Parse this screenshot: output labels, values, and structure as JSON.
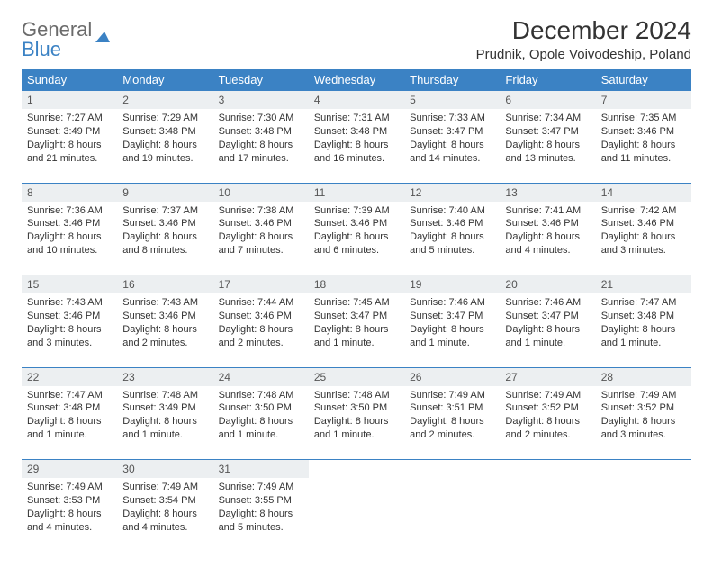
{
  "brand": {
    "part1": "General",
    "part2": "Blue"
  },
  "title": "December 2024",
  "subtitle": "Prudnik, Opole Voivodeship, Poland",
  "colors": {
    "header_bg": "#3b82c4",
    "header_text": "#ffffff",
    "daynum_bg": "#eceff1",
    "border": "#3b82c4",
    "text": "#333333",
    "logo_gray": "#6b6b6b",
    "logo_blue": "#3b82c4",
    "page_bg": "#ffffff"
  },
  "weekdays": [
    "Sunday",
    "Monday",
    "Tuesday",
    "Wednesday",
    "Thursday",
    "Friday",
    "Saturday"
  ],
  "weeks": [
    [
      {
        "n": "1",
        "sr": "7:27 AM",
        "ss": "3:49 PM",
        "dl": "8 hours and 21 minutes."
      },
      {
        "n": "2",
        "sr": "7:29 AM",
        "ss": "3:48 PM",
        "dl": "8 hours and 19 minutes."
      },
      {
        "n": "3",
        "sr": "7:30 AM",
        "ss": "3:48 PM",
        "dl": "8 hours and 17 minutes."
      },
      {
        "n": "4",
        "sr": "7:31 AM",
        "ss": "3:48 PM",
        "dl": "8 hours and 16 minutes."
      },
      {
        "n": "5",
        "sr": "7:33 AM",
        "ss": "3:47 PM",
        "dl": "8 hours and 14 minutes."
      },
      {
        "n": "6",
        "sr": "7:34 AM",
        "ss": "3:47 PM",
        "dl": "8 hours and 13 minutes."
      },
      {
        "n": "7",
        "sr": "7:35 AM",
        "ss": "3:46 PM",
        "dl": "8 hours and 11 minutes."
      }
    ],
    [
      {
        "n": "8",
        "sr": "7:36 AM",
        "ss": "3:46 PM",
        "dl": "8 hours and 10 minutes."
      },
      {
        "n": "9",
        "sr": "7:37 AM",
        "ss": "3:46 PM",
        "dl": "8 hours and 8 minutes."
      },
      {
        "n": "10",
        "sr": "7:38 AM",
        "ss": "3:46 PM",
        "dl": "8 hours and 7 minutes."
      },
      {
        "n": "11",
        "sr": "7:39 AM",
        "ss": "3:46 PM",
        "dl": "8 hours and 6 minutes."
      },
      {
        "n": "12",
        "sr": "7:40 AM",
        "ss": "3:46 PM",
        "dl": "8 hours and 5 minutes."
      },
      {
        "n": "13",
        "sr": "7:41 AM",
        "ss": "3:46 PM",
        "dl": "8 hours and 4 minutes."
      },
      {
        "n": "14",
        "sr": "7:42 AM",
        "ss": "3:46 PM",
        "dl": "8 hours and 3 minutes."
      }
    ],
    [
      {
        "n": "15",
        "sr": "7:43 AM",
        "ss": "3:46 PM",
        "dl": "8 hours and 3 minutes."
      },
      {
        "n": "16",
        "sr": "7:43 AM",
        "ss": "3:46 PM",
        "dl": "8 hours and 2 minutes."
      },
      {
        "n": "17",
        "sr": "7:44 AM",
        "ss": "3:46 PM",
        "dl": "8 hours and 2 minutes."
      },
      {
        "n": "18",
        "sr": "7:45 AM",
        "ss": "3:47 PM",
        "dl": "8 hours and 1 minute."
      },
      {
        "n": "19",
        "sr": "7:46 AM",
        "ss": "3:47 PM",
        "dl": "8 hours and 1 minute."
      },
      {
        "n": "20",
        "sr": "7:46 AM",
        "ss": "3:47 PM",
        "dl": "8 hours and 1 minute."
      },
      {
        "n": "21",
        "sr": "7:47 AM",
        "ss": "3:48 PM",
        "dl": "8 hours and 1 minute."
      }
    ],
    [
      {
        "n": "22",
        "sr": "7:47 AM",
        "ss": "3:48 PM",
        "dl": "8 hours and 1 minute."
      },
      {
        "n": "23",
        "sr": "7:48 AM",
        "ss": "3:49 PM",
        "dl": "8 hours and 1 minute."
      },
      {
        "n": "24",
        "sr": "7:48 AM",
        "ss": "3:50 PM",
        "dl": "8 hours and 1 minute."
      },
      {
        "n": "25",
        "sr": "7:48 AM",
        "ss": "3:50 PM",
        "dl": "8 hours and 1 minute."
      },
      {
        "n": "26",
        "sr": "7:49 AM",
        "ss": "3:51 PM",
        "dl": "8 hours and 2 minutes."
      },
      {
        "n": "27",
        "sr": "7:49 AM",
        "ss": "3:52 PM",
        "dl": "8 hours and 2 minutes."
      },
      {
        "n": "28",
        "sr": "7:49 AM",
        "ss": "3:52 PM",
        "dl": "8 hours and 3 minutes."
      }
    ],
    [
      {
        "n": "29",
        "sr": "7:49 AM",
        "ss": "3:53 PM",
        "dl": "8 hours and 4 minutes."
      },
      {
        "n": "30",
        "sr": "7:49 AM",
        "ss": "3:54 PM",
        "dl": "8 hours and 4 minutes."
      },
      {
        "n": "31",
        "sr": "7:49 AM",
        "ss": "3:55 PM",
        "dl": "8 hours and 5 minutes."
      },
      null,
      null,
      null,
      null
    ]
  ],
  "labels": {
    "sunrise": "Sunrise:",
    "sunset": "Sunset:",
    "daylight": "Daylight:"
  }
}
